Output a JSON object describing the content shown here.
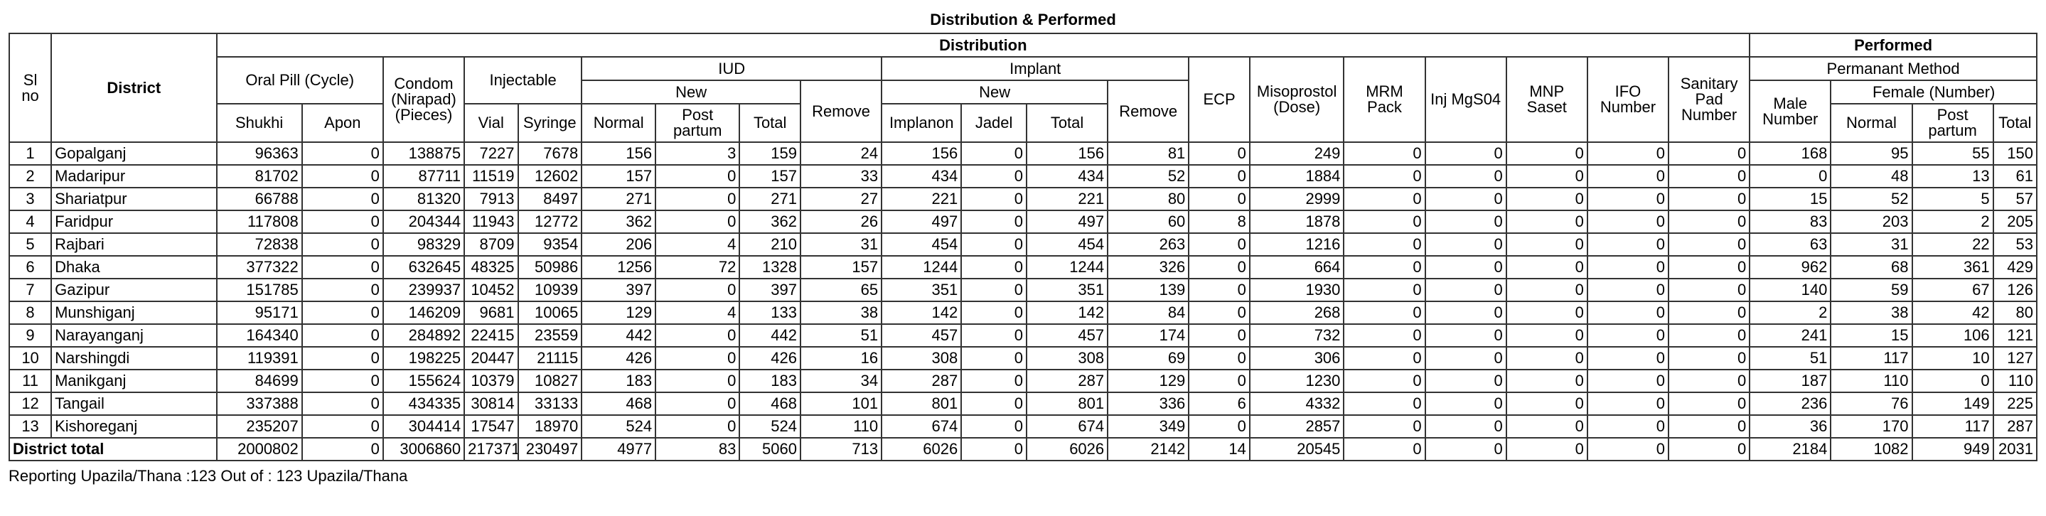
{
  "title": "Distribution & Performed",
  "headers": {
    "sl_no": "Sl no",
    "district": "District",
    "distribution": "Distribution",
    "performed": "Performed",
    "oral_pill": "Oral Pill (Cycle)",
    "shukhi": "Shukhi",
    "apon": "Apon",
    "condom": "Condom (Nirapad) (Pieces)",
    "injectable": "Injectable",
    "vial": "Vial",
    "syringe": "Syringe",
    "iud": "IUD",
    "iud_new": "New",
    "iud_normal": "Normal",
    "iud_post_partum": "Post partum",
    "iud_total": "Total",
    "iud_remove": "Remove",
    "implant": "Implant",
    "implant_new": "New",
    "implanon": "Implanon",
    "jadel": "Jadel",
    "implant_total": "Total",
    "implant_remove": "Remove",
    "ecp": "ECP",
    "misoprostol": "Misoprostol (Dose)",
    "mrm_pack": "MRM Pack",
    "inj_mgso4": "Inj MgS04",
    "mnp_saset": "MNP Saset",
    "ifo_number": "IFO Number",
    "sanitary_pad": "Sanitary Pad Number",
    "permanent_method": "Permanant Method",
    "male_number": "Male Number",
    "female_number": "Female (Number)",
    "female_normal": "Normal",
    "female_post_partum": "Post partum",
    "female_total": "Total"
  },
  "rows": [
    [
      "1",
      "Gopalganj",
      "96363",
      "0",
      "138875",
      "7227",
      "7678",
      "156",
      "3",
      "159",
      "24",
      "156",
      "0",
      "156",
      "81",
      "0",
      "249",
      "0",
      "0",
      "0",
      "0",
      "0",
      "168",
      "95",
      "55",
      "150"
    ],
    [
      "2",
      "Madaripur",
      "81702",
      "0",
      "87711",
      "11519",
      "12602",
      "157",
      "0",
      "157",
      "33",
      "434",
      "0",
      "434",
      "52",
      "0",
      "1884",
      "0",
      "0",
      "0",
      "0",
      "0",
      "0",
      "48",
      "13",
      "61"
    ],
    [
      "3",
      "Shariatpur",
      "66788",
      "0",
      "81320",
      "7913",
      "8497",
      "271",
      "0",
      "271",
      "27",
      "221",
      "0",
      "221",
      "80",
      "0",
      "2999",
      "0",
      "0",
      "0",
      "0",
      "0",
      "15",
      "52",
      "5",
      "57"
    ],
    [
      "4",
      "Faridpur",
      "117808",
      "0",
      "204344",
      "11943",
      "12772",
      "362",
      "0",
      "362",
      "26",
      "497",
      "0",
      "497",
      "60",
      "8",
      "1878",
      "0",
      "0",
      "0",
      "0",
      "0",
      "83",
      "203",
      "2",
      "205"
    ],
    [
      "5",
      "Rajbari",
      "72838",
      "0",
      "98329",
      "8709",
      "9354",
      "206",
      "4",
      "210",
      "31",
      "454",
      "0",
      "454",
      "263",
      "0",
      "1216",
      "0",
      "0",
      "0",
      "0",
      "0",
      "63",
      "31",
      "22",
      "53"
    ],
    [
      "6",
      "Dhaka",
      "377322",
      "0",
      "632645",
      "48325",
      "50986",
      "1256",
      "72",
      "1328",
      "157",
      "1244",
      "0",
      "1244",
      "326",
      "0",
      "664",
      "0",
      "0",
      "0",
      "0",
      "0",
      "962",
      "68",
      "361",
      "429"
    ],
    [
      "7",
      "Gazipur",
      "151785",
      "0",
      "239937",
      "10452",
      "10939",
      "397",
      "0",
      "397",
      "65",
      "351",
      "0",
      "351",
      "139",
      "0",
      "1930",
      "0",
      "0",
      "0",
      "0",
      "0",
      "140",
      "59",
      "67",
      "126"
    ],
    [
      "8",
      "Munshiganj",
      "95171",
      "0",
      "146209",
      "9681",
      "10065",
      "129",
      "4",
      "133",
      "38",
      "142",
      "0",
      "142",
      "84",
      "0",
      "268",
      "0",
      "0",
      "0",
      "0",
      "0",
      "2",
      "38",
      "42",
      "80"
    ],
    [
      "9",
      "Narayanganj",
      "164340",
      "0",
      "284892",
      "22415",
      "23559",
      "442",
      "0",
      "442",
      "51",
      "457",
      "0",
      "457",
      "174",
      "0",
      "732",
      "0",
      "0",
      "0",
      "0",
      "0",
      "241",
      "15",
      "106",
      "121"
    ],
    [
      "10",
      "Narshingdi",
      "119391",
      "0",
      "198225",
      "20447",
      "21115",
      "426",
      "0",
      "426",
      "16",
      "308",
      "0",
      "308",
      "69",
      "0",
      "306",
      "0",
      "0",
      "0",
      "0",
      "0",
      "51",
      "117",
      "10",
      "127"
    ],
    [
      "11",
      "Manikganj",
      "84699",
      "0",
      "155624",
      "10379",
      "10827",
      "183",
      "0",
      "183",
      "34",
      "287",
      "0",
      "287",
      "129",
      "0",
      "1230",
      "0",
      "0",
      "0",
      "0",
      "0",
      "187",
      "110",
      "0",
      "110"
    ],
    [
      "12",
      "Tangail",
      "337388",
      "0",
      "434335",
      "30814",
      "33133",
      "468",
      "0",
      "468",
      "101",
      "801",
      "0",
      "801",
      "336",
      "6",
      "4332",
      "0",
      "0",
      "0",
      "0",
      "0",
      "236",
      "76",
      "149",
      "225"
    ],
    [
      "13",
      "Kishoreganj",
      "235207",
      "0",
      "304414",
      "17547",
      "18970",
      "524",
      "0",
      "524",
      "110",
      "674",
      "0",
      "674",
      "349",
      "0",
      "2857",
      "0",
      "0",
      "0",
      "0",
      "0",
      "36",
      "170",
      "117",
      "287"
    ]
  ],
  "total": {
    "label": "District total",
    "values": [
      "2000802",
      "0",
      "3006860",
      "217371",
      "230497",
      "4977",
      "83",
      "5060",
      "713",
      "6026",
      "0",
      "6026",
      "2142",
      "14",
      "20545",
      "0",
      "0",
      "0",
      "0",
      "0",
      "2184",
      "1082",
      "949",
      "2031"
    ]
  },
  "footer": "Reporting Upazila/Thana :123  Out of : 123 Upazila/Thana"
}
